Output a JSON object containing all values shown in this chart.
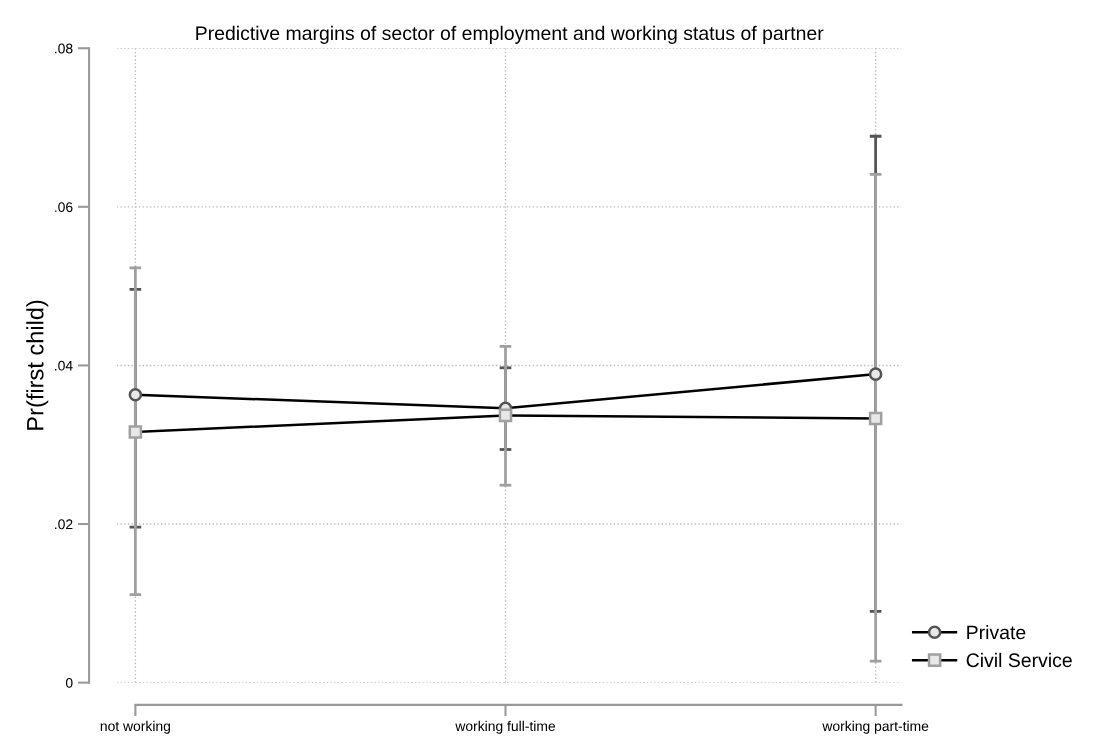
{
  "chart_data": {
    "type": "line",
    "title": "Predictive margins of sector of employment and working status of partner",
    "ylabel": "Pr(first child)",
    "categories": [
      "not working",
      "working full-time",
      "working part-time"
    ],
    "series": [
      {
        "name": "Private",
        "color": "#555555",
        "marker": "circle",
        "values": [
          0.0363,
          0.0346,
          0.0389
        ],
        "errors": [
          [
            0.0196,
            0.0496
          ],
          [
            0.0294,
            0.0397
          ],
          [
            0.009,
            0.0689
          ]
        ]
      },
      {
        "name": "Civil Service",
        "color": "#a0a0a0",
        "marker": "square",
        "values": [
          0.0316,
          0.0337,
          0.0333
        ],
        "errors": [
          [
            0.0111,
            0.0523
          ],
          [
            0.0249,
            0.0424
          ],
          [
            0.0027,
            0.0641
          ]
        ]
      }
    ],
    "ylim": [
      0,
      0.08
    ],
    "yticks": [
      0,
      {
        "value": 0.02,
        "label": ".02"
      },
      {
        "value": 0.04,
        "label": ".04"
      },
      {
        "value": 0.06,
        "label": ".06"
      },
      {
        "value": 0.08,
        "label": ".08"
      }
    ],
    "grid": true,
    "legend": "right",
    "line_style": "solid"
  }
}
